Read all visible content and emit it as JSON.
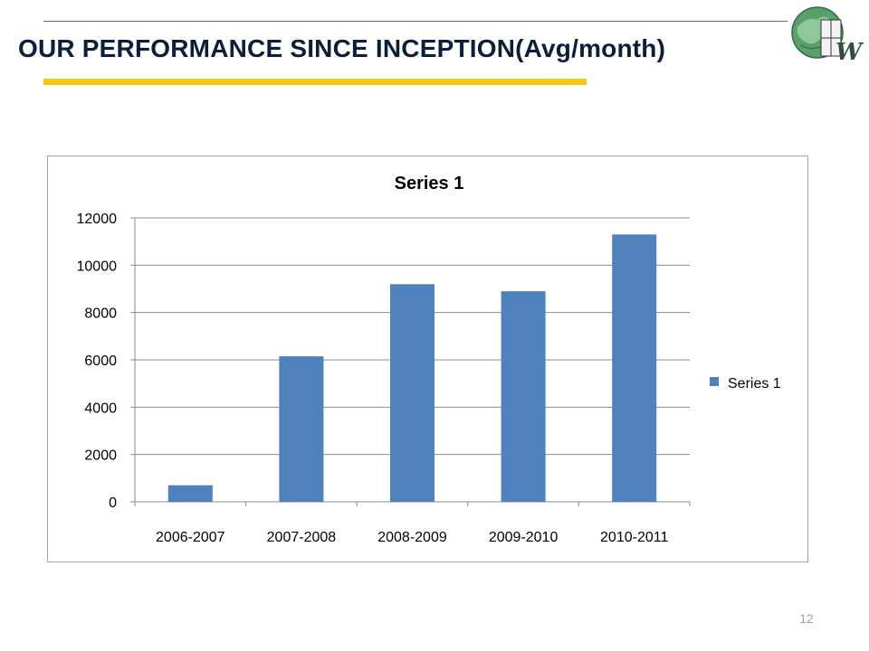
{
  "slide": {
    "title": "OUR PERFORMANCE SINCE INCEPTION(Avg/month)",
    "page_number": "12",
    "logo_text": "W"
  },
  "colors": {
    "title": "#0b1f3a",
    "underline": "#f5c518",
    "bar": "#4f81bd",
    "gridline": "#8c8c8c"
  },
  "chart_data": {
    "type": "bar",
    "title": "Series 1",
    "categories": [
      "2006-2007",
      "2007-2008",
      "2008-2009",
      "2009-2010",
      "2010-2011"
    ],
    "series": [
      {
        "name": "Series 1",
        "values": [
          700,
          6150,
          9200,
          8900,
          11300
        ]
      }
    ],
    "ylim": [
      0,
      12000
    ],
    "yticks": [
      0,
      2000,
      4000,
      6000,
      8000,
      10000,
      12000
    ],
    "grid": true,
    "legend": "right"
  }
}
